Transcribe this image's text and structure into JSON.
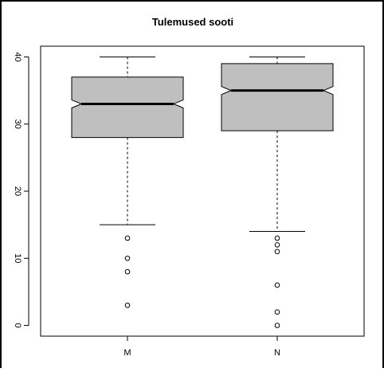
{
  "chart_data": {
    "type": "boxplot",
    "title": "Tulemused sooti",
    "xlabel": "",
    "ylabel": "",
    "categories": [
      "M",
      "N"
    ],
    "y_ticks": [
      "0",
      "10",
      "20",
      "30",
      "40"
    ],
    "ylim": [
      -1.6,
      41.6
    ],
    "notched": true,
    "box_color": "#bfbfbf",
    "series": [
      {
        "category": "M",
        "whisker_low": 15,
        "q1": 28,
        "median": 33,
        "q3": 37,
        "whisker_high": 40,
        "notch_low": 32.4,
        "notch_high": 33.6,
        "outliers": [
          13,
          10,
          8,
          3
        ]
      },
      {
        "category": "N",
        "whisker_low": 14,
        "q1": 29,
        "median": 35,
        "q3": 39,
        "whisker_high": 40,
        "notch_low": 34.4,
        "notch_high": 35.6,
        "outliers": [
          13,
          12,
          11,
          6,
          2,
          0
        ]
      }
    ]
  }
}
